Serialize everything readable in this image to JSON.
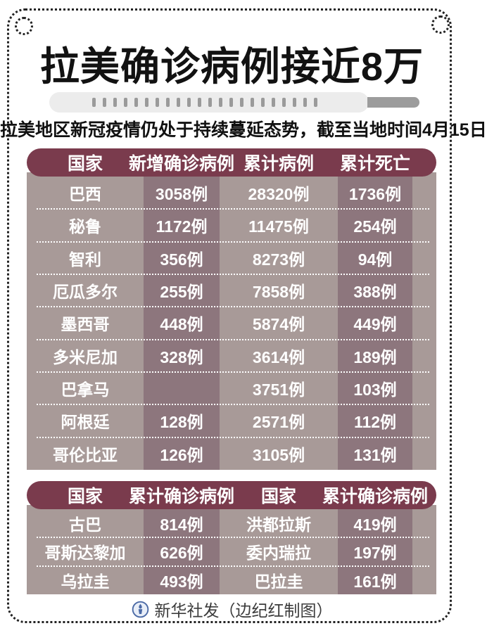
{
  "title": "拉美确诊病例接近8万",
  "subtitle": "拉美地区新冠疫情仍处于持续蔓延态势，截至当地时间4月15日",
  "footer_credit": "新华社发（边纪红制图）",
  "colors": {
    "table_header_bg": "#7a3b4d",
    "row_bg_light": "#a89a98",
    "row_bg_dark": "#8d767d",
    "row_text": "#ffffff",
    "title_ink": "#121212",
    "thermometer_track": "#ececec",
    "thermometer_stub": "#9c9c9c",
    "logo_blue": "#4a69a5"
  },
  "chart_data": [
    {
      "type": "table",
      "title": "拉美确诊病例接近8万",
      "subtitle": "拉美地区新冠疫情仍处于持续蔓延态势，截至当地时间4月15日",
      "columns": [
        "国家",
        "新增确诊病例",
        "累计病例",
        "累计死亡"
      ],
      "rows": [
        [
          "巴西",
          "3058例",
          "28320例",
          "1736例"
        ],
        [
          "秘鲁",
          "1172例",
          "11475例",
          "254例"
        ],
        [
          "智利",
          "356例",
          "8273例",
          "94例"
        ],
        [
          "厄瓜多尔",
          "255例",
          "7858例",
          "388例"
        ],
        [
          "墨西哥",
          "448例",
          "5874例",
          "449例"
        ],
        [
          "多米尼加",
          "328例",
          "3614例",
          "189例"
        ],
        [
          "巴拿马",
          "",
          "3751例",
          "103例"
        ],
        [
          "阿根廷",
          "128例",
          "2571例",
          "112例"
        ],
        [
          "哥伦比亚",
          "126例",
          "3105例",
          "131例"
        ]
      ]
    },
    {
      "type": "table",
      "columns": [
        "国家",
        "累计确诊病例",
        "国家",
        "累计确诊病例"
      ],
      "rows": [
        [
          "古巴",
          "814例",
          "洪都拉斯",
          "419例"
        ],
        [
          "哥斯达黎加",
          "626例",
          "委内瑞拉",
          "197例"
        ],
        [
          "乌拉圭",
          "493例",
          "巴拉圭",
          "161例"
        ]
      ]
    }
  ]
}
